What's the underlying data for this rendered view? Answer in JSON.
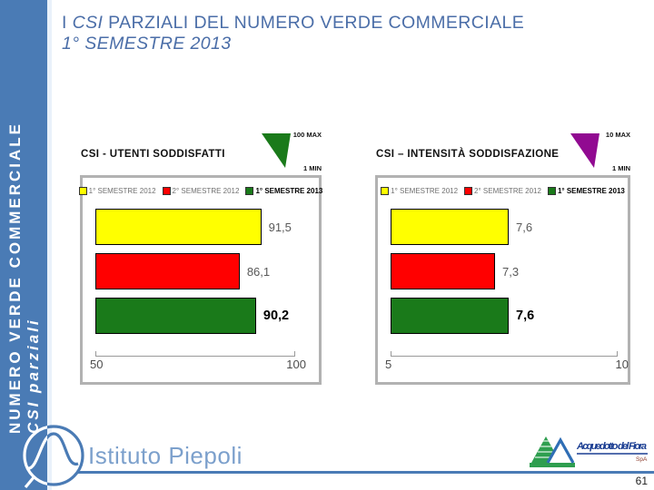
{
  "slide": {
    "title_line1_pre": "I ",
    "title_line1_italic": "CSI",
    "title_line1_post": " PARZIALI DEL NUMERO VERDE COMMERCIALE",
    "title_line2": "1° SEMESTRE 2013",
    "page_number": "61"
  },
  "sidebar": {
    "line1": "NUMERO VERDE COMMERCIALE",
    "line2": "CSI parziali"
  },
  "colors": {
    "band_blue": "#4A7BB5",
    "title_blue": "#4B6EA8",
    "bar_yellow": "#FFFF00",
    "bar_red": "#FF0000",
    "bar_green": "#1A7A1A",
    "indicator_purple": "#910A91",
    "piepoli_text_blue": "#7CA0CC"
  },
  "chart_data": [
    {
      "type": "bar",
      "orientation": "horizontal",
      "title": "CSI - UTENTI SODDISFATTI",
      "categories": [
        "1° SEMESTRE 2012",
        "2° SEMESTRE 2012",
        "1° SEMESTRE 2013"
      ],
      "values": [
        91.5,
        86.1,
        90.2
      ],
      "value_labels": [
        "91,5",
        "86,1",
        "90,2"
      ],
      "colors": [
        "#FFFF00",
        "#FF0000",
        "#1A7A1A"
      ],
      "xlim": [
        50,
        100
      ],
      "x_tick_labels": [
        "50",
        "100"
      ],
      "legend_position": "top",
      "grid": false,
      "indicator_color": "#1A7A1A",
      "scale_max_label": "100 MAX",
      "scale_min_label": "1 MIN"
    },
    {
      "type": "bar",
      "orientation": "horizontal",
      "title": "CSI – INTENSITÀ SODDISFAZIONE",
      "categories": [
        "1° SEMESTRE 2012",
        "2° SEMESTRE 2012",
        "1° SEMESTRE 2013"
      ],
      "values": [
        7.6,
        7.3,
        7.6
      ],
      "value_labels": [
        "7,6",
        "7,3",
        "7,6"
      ],
      "colors": [
        "#FFFF00",
        "#FF0000",
        "#1A7A1A"
      ],
      "xlim": [
        5,
        10
      ],
      "x_tick_labels": [
        "5",
        "10"
      ],
      "legend_position": "top",
      "grid": false,
      "indicator_color": "#910A91",
      "scale_max_label": "10 MAX",
      "scale_min_label": "1 MIN"
    }
  ],
  "footer": {
    "istituto_logo_text": "Istituto Piepoli",
    "adf_logo_text": "Acquedotto del Fiora",
    "adf_logo_subtext": "SpA"
  }
}
